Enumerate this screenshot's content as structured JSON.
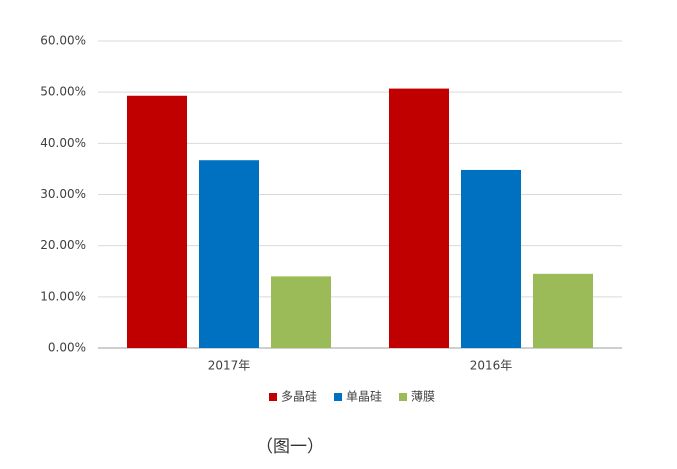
{
  "chart_data": {
    "type": "bar",
    "categories": [
      "2017年",
      "2016年"
    ],
    "series": [
      {
        "name": "多晶硅",
        "color": "#c00000",
        "values": [
          49.3,
          50.7
        ]
      },
      {
        "name": "单晶硅",
        "color": "#0070c0",
        "values": [
          36.7,
          34.8
        ]
      },
      {
        "name": "薄膜",
        "color": "#9bbb59",
        "values": [
          14.0,
          14.5
        ]
      }
    ],
    "ylim": [
      0,
      60
    ],
    "yticks": [
      {
        "value": 0,
        "label": "0.00%"
      },
      {
        "value": 10,
        "label": "10.00%"
      },
      {
        "value": 20,
        "label": "20.00%"
      },
      {
        "value": 30,
        "label": "30.00%"
      },
      {
        "value": 40,
        "label": "40.00%"
      },
      {
        "value": 50,
        "label": "50.00%"
      },
      {
        "value": 60,
        "label": "60.00%"
      }
    ],
    "grid": true,
    "legend": "bottom",
    "caption": "（图一）"
  }
}
